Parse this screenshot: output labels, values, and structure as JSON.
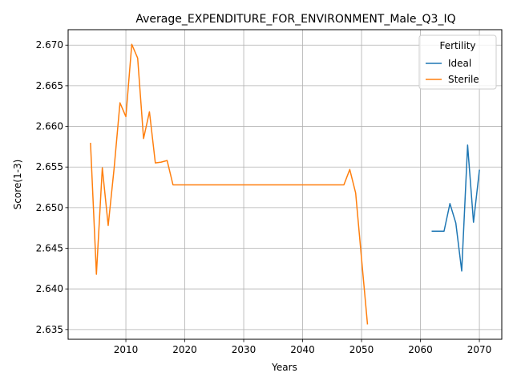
{
  "chart_data": {
    "type": "line",
    "title": "Average_EXPENDITURE_FOR_ENVIRONMENT_Male_Q3_IQ",
    "xlabel": "Years",
    "ylabel": "Score(1-3)",
    "xlim": [
      2000.2,
      2073.8
    ],
    "ylim": [
      2.6338,
      2.6719
    ],
    "xticks": [
      2010,
      2020,
      2030,
      2040,
      2050,
      2060,
      2070
    ],
    "yticks": [
      2.635,
      2.64,
      2.645,
      2.65,
      2.655,
      2.66,
      2.665,
      2.67
    ],
    "xtick_labels": [
      "2010",
      "2020",
      "2030",
      "2040",
      "2050",
      "2060",
      "2070"
    ],
    "ytick_labels": [
      "2.635",
      "2.640",
      "2.645",
      "2.650",
      "2.655",
      "2.660",
      "2.665",
      "2.670"
    ],
    "grid": true,
    "legend": {
      "title": "Fertility",
      "position": "top-right"
    },
    "series": [
      {
        "name": "Ideal",
        "color": "#1f77b4",
        "x": [
          2062,
          2063,
          2064,
          2065,
          2066,
          2067,
          2068,
          2069,
          2070
        ],
        "y": [
          2.6471,
          2.6471,
          2.6471,
          2.6505,
          2.6481,
          2.6422,
          2.6577,
          2.6482,
          2.6546
        ]
      },
      {
        "name": "Sterile",
        "color": "#ff7f0e",
        "x": [
          2004,
          2005,
          2006,
          2007,
          2008,
          2009,
          2010,
          2011,
          2012,
          2013,
          2014,
          2015,
          2016,
          2017,
          2018,
          2019,
          2020,
          2021,
          2022,
          2023,
          2024,
          2025,
          2026,
          2027,
          2028,
          2029,
          2030,
          2031,
          2032,
          2033,
          2034,
          2035,
          2036,
          2037,
          2038,
          2039,
          2040,
          2041,
          2042,
          2043,
          2044,
          2045,
          2046,
          2047,
          2048,
          2049,
          2050,
          2051
        ],
        "y": [
          2.6579,
          2.6418,
          2.6549,
          2.6478,
          2.6548,
          2.6629,
          2.6612,
          2.6701,
          2.6684,
          2.6585,
          2.6618,
          2.6555,
          2.6556,
          2.6558,
          2.6528,
          2.6528,
          2.6528,
          2.6528,
          2.6528,
          2.6528,
          2.6528,
          2.6528,
          2.6528,
          2.6528,
          2.6528,
          2.6528,
          2.6528,
          2.6528,
          2.6528,
          2.6528,
          2.6528,
          2.6528,
          2.6528,
          2.6528,
          2.6528,
          2.6528,
          2.6528,
          2.6528,
          2.6528,
          2.6528,
          2.6528,
          2.6528,
          2.6528,
          2.6528,
          2.6547,
          2.6518,
          2.6437,
          2.6357
        ]
      }
    ]
  }
}
